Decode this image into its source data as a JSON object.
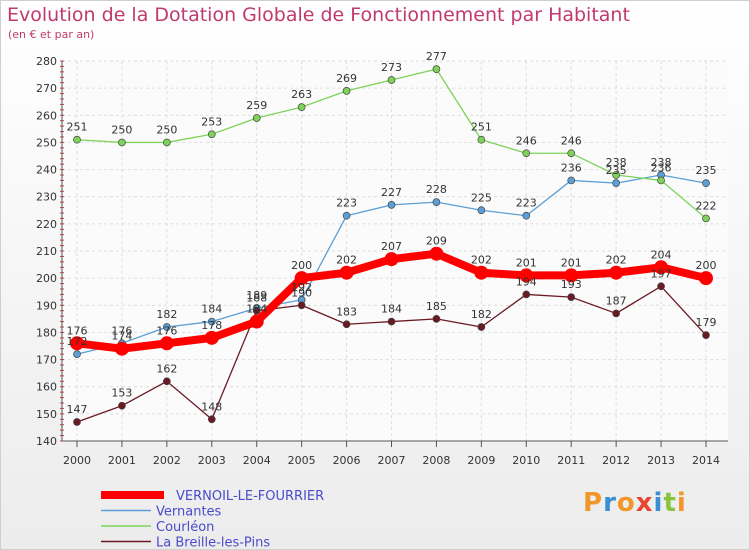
{
  "chart_data": {
    "type": "line",
    "title": "Evolution de la Dotation Globale de Fonctionnement par Habitant",
    "subtitle": "(en € et par an)",
    "x": [
      "2000",
      "2001",
      "2002",
      "2003",
      "2004",
      "2005",
      "2006",
      "2007",
      "2008",
      "2009",
      "2010",
      "2011",
      "2012",
      "2013",
      "2014"
    ],
    "ylim": [
      140,
      280
    ],
    "yticks": [
      140,
      150,
      160,
      170,
      180,
      190,
      200,
      210,
      220,
      230,
      240,
      250,
      260,
      270,
      280
    ],
    "grid": true,
    "legend_position": "bottom-left",
    "series": [
      {
        "name": "VERNOIL-LE-FOURRIER",
        "color": "#ff0000",
        "values": [
          176,
          174,
          176,
          178,
          184,
          200,
          202,
          207,
          209,
          202,
          201,
          201,
          202,
          204,
          200
        ]
      },
      {
        "name": "Vernantes",
        "color": "#5b9fd6",
        "values": [
          172,
          176,
          182,
          184,
          189,
          192,
          223,
          227,
          228,
          225,
          223,
          236,
          235,
          238,
          235
        ]
      },
      {
        "name": "Courléon",
        "color": "#7dd35a",
        "values": [
          251,
          250,
          250,
          253,
          259,
          263,
          269,
          273,
          277,
          251,
          246,
          246,
          238,
          236,
          222
        ]
      },
      {
        "name": "La Breille-les-Pins",
        "color": "#6b1a24",
        "values": [
          147,
          153,
          162,
          148,
          188,
          190,
          183,
          184,
          185,
          182,
          194,
          193,
          187,
          197,
          179
        ]
      }
    ]
  },
  "logo": {
    "letters": [
      "P",
      "r",
      "o",
      "x",
      "i",
      "t",
      "i"
    ],
    "colors": [
      "#f0962a",
      "#3a8fd4",
      "#f0962a",
      "#e8452f",
      "#3a8fd4",
      "#8ac43f",
      "#f0962a"
    ]
  }
}
